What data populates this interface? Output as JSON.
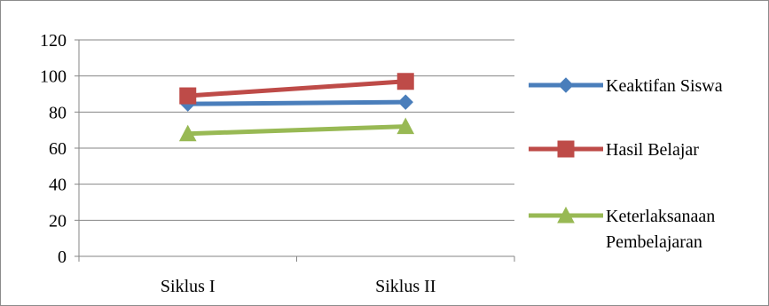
{
  "chart_data": {
    "type": "line",
    "categories": [
      "Siklus I",
      "Siklus II"
    ],
    "ylim": [
      0,
      120
    ],
    "yticks": [
      0,
      20,
      40,
      60,
      80,
      100,
      120
    ],
    "y_tick_labels": [
      "0",
      "20",
      "40",
      "60",
      "80",
      "100",
      "120"
    ],
    "grid": true,
    "legend_position": "right",
    "series": [
      {
        "name": "Keaktifan Siswa",
        "values": [
          84.5,
          85.5
        ],
        "color": "#4a7ebb",
        "marker": "diamond"
      },
      {
        "name": "Hasil Belajar",
        "values": [
          89,
          97
        ],
        "color": "#be4b48",
        "marker": "square"
      },
      {
        "name": "Keterlaksanaan Pembelajaran",
        "legend_lines": [
          "Keterlaksanaan",
          "Pembelajaran"
        ],
        "values": [
          68,
          72
        ],
        "color": "#98b954",
        "marker": "triangle"
      }
    ]
  }
}
